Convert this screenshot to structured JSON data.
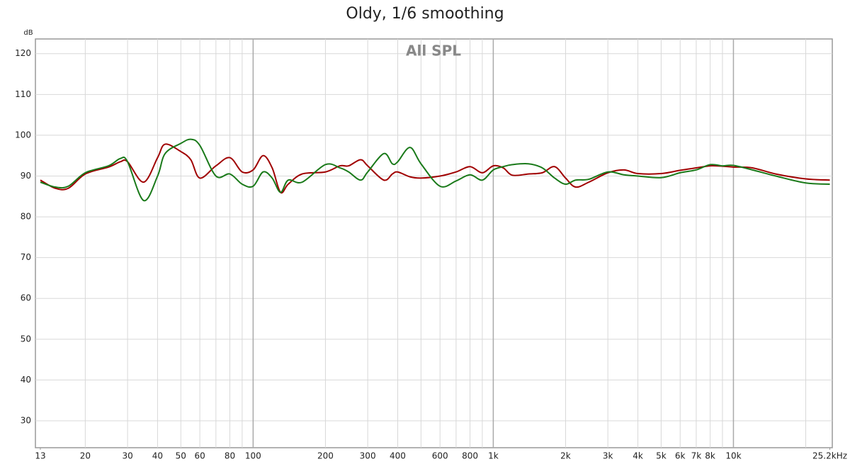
{
  "chart_data": {
    "type": "line",
    "title": "Oldy, 1/6 smoothing",
    "annotation": "All SPL",
    "y_unit": "dB",
    "log_x": true,
    "grid": true,
    "xlim": [
      12.4,
      25800
    ],
    "ylim": [
      23.4,
      123.6
    ],
    "yticks": [
      30,
      40,
      50,
      60,
      70,
      80,
      90,
      100,
      110,
      120
    ],
    "xticks": [
      13,
      20,
      30,
      40,
      50,
      60,
      80,
      100,
      200,
      300,
      400,
      600,
      800,
      {
        "value": 1000,
        "label": "1k"
      },
      {
        "value": 2000,
        "label": "2k"
      },
      {
        "value": 3000,
        "label": "3k"
      },
      {
        "value": 4000,
        "label": "4k"
      },
      {
        "value": 5000,
        "label": "5k"
      },
      {
        "value": 6000,
        "label": "6k"
      },
      {
        "value": 7000,
        "label": "7k"
      },
      {
        "value": 8000,
        "label": "8k"
      },
      {
        "value": 10000,
        "label": "10k"
      },
      {
        "value": 25200,
        "label": "25.2kHz"
      }
    ],
    "x_minor_grid": [
      70,
      90,
      500,
      700,
      900,
      9000,
      20000
    ],
    "x_major_grid": [
      100,
      1000,
      10000
    ],
    "x": [
      13,
      15,
      17,
      20,
      25,
      28,
      30,
      35,
      40,
      43,
      50,
      55,
      60,
      70,
      80,
      90,
      100,
      110,
      120,
      130,
      140,
      160,
      200,
      230,
      250,
      280,
      300,
      350,
      380,
      400,
      450,
      500,
      600,
      700,
      800,
      900,
      1000,
      1100,
      1200,
      1400,
      1600,
      1800,
      2000,
      2200,
      2500,
      3000,
      3500,
      4000,
      5000,
      6000,
      7000,
      8000,
      9000,
      10000,
      12000,
      15000,
      20000,
      25200
    ],
    "series": [
      {
        "name": "Red",
        "color": "#a00000",
        "values": [
          89,
          87,
          87,
          90.5,
          92.2,
          93.5,
          93.5,
          88.5,
          94.5,
          97.8,
          96,
          94,
          89.5,
          92.5,
          94.5,
          91,
          91.5,
          95,
          92,
          86,
          88,
          90.5,
          91,
          92.5,
          92.5,
          94,
          92.5,
          89,
          90.5,
          91,
          89.8,
          89.5,
          90,
          91,
          92.3,
          90.8,
          92.5,
          92,
          90.2,
          90.5,
          90.8,
          92.3,
          89.5,
          87.3,
          88.5,
          90.8,
          91.5,
          90.6,
          90.6,
          91.4,
          92,
          92.5,
          92.4,
          92.2,
          92,
          90.5,
          89.3,
          89
        ]
      },
      {
        "name": "Green",
        "color": "#1a7a1a",
        "values": [
          88.5,
          87.3,
          87.5,
          90.8,
          92.5,
          94.3,
          93.5,
          84,
          90,
          95.5,
          98,
          99,
          97.5,
          90,
          90.5,
          88,
          87.5,
          91,
          89.5,
          86,
          89,
          88.5,
          92.8,
          92,
          91,
          89,
          91,
          95.5,
          93,
          93.5,
          97,
          93,
          87.5,
          88.8,
          90.3,
          89,
          91.5,
          92.3,
          92.8,
          93,
          92,
          89.5,
          88,
          89,
          89.2,
          91,
          90.3,
          90,
          89.6,
          90.8,
          91.5,
          92.8,
          92.5,
          92.6,
          91.5,
          90,
          88.3,
          88
        ]
      }
    ]
  }
}
